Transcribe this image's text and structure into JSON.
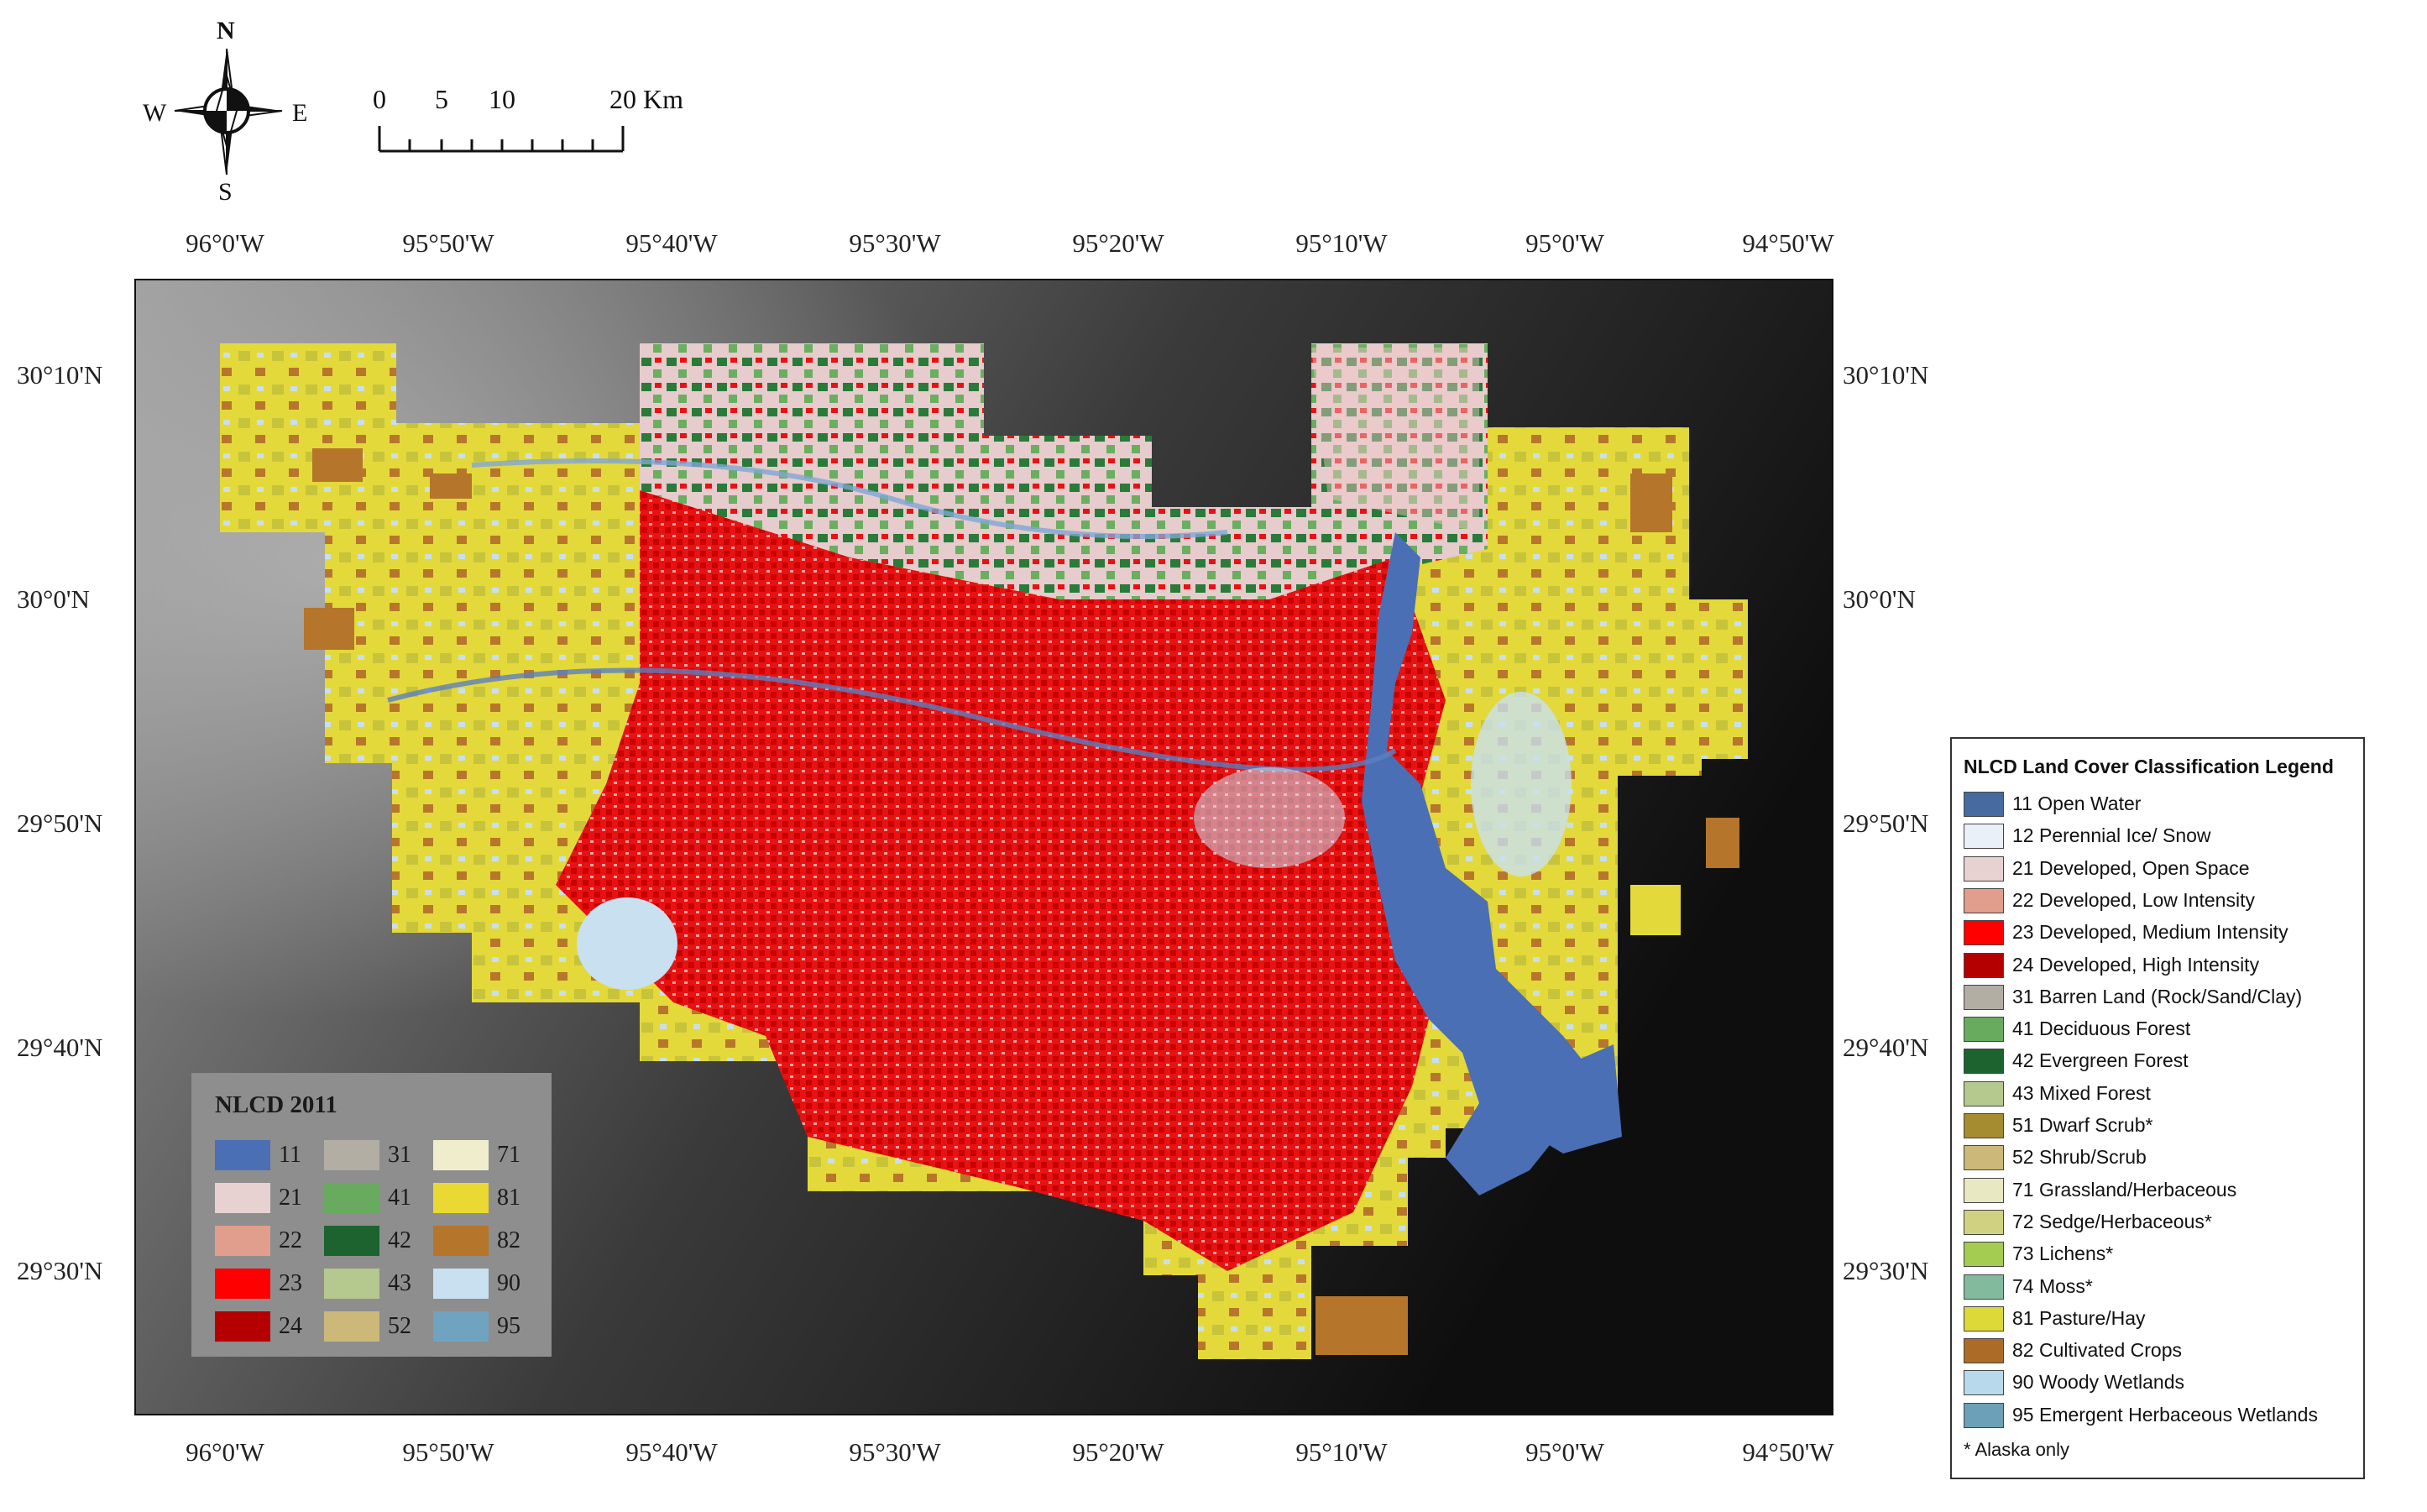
{
  "compass": {
    "north": "N",
    "south": "S",
    "west": "W",
    "east": "E"
  },
  "scale_bar": {
    "labels": [
      "0",
      "5",
      "10",
      "20 Km"
    ]
  },
  "graticule": {
    "longitudes": [
      "96°0'W",
      "95°50'W",
      "95°40'W",
      "95°30'W",
      "95°20'W",
      "95°10'W",
      "95°0'W",
      "94°50'W"
    ],
    "latitudes": [
      "30°10'N",
      "30°0'N",
      "29°50'N",
      "29°40'N",
      "29°30'N"
    ]
  },
  "inset_legend": {
    "title": "NLCD 2011",
    "classes": [
      {
        "code": "11",
        "color": "#4a6fb5"
      },
      {
        "code": "21",
        "color": "#e8d1d1"
      },
      {
        "code": "22",
        "color": "#e29e8c"
      },
      {
        "code": "23",
        "color": "#ff0000"
      },
      {
        "code": "24",
        "color": "#b50000"
      },
      {
        "code": "31",
        "color": "#b3aea3"
      },
      {
        "code": "41",
        "color": "#68ab5f"
      },
      {
        "code": "42",
        "color": "#1c6330"
      },
      {
        "code": "43",
        "color": "#b5c98e"
      },
      {
        "code": "52",
        "color": "#ccb879"
      },
      {
        "code": "71",
        "color": "#efedcc"
      },
      {
        "code": "81",
        "color": "#ead932"
      },
      {
        "code": "82",
        "color": "#b5752a"
      },
      {
        "code": "90",
        "color": "#c8e0f0"
      },
      {
        "code": "95",
        "color": "#70a3c0"
      }
    ]
  },
  "legend": {
    "title": "NLCD Land Cover Classification Legend",
    "items": [
      {
        "label": "11 Open Water",
        "color": "#476ba1"
      },
      {
        "label": "12 Perennial Ice/ Snow",
        "color": "#eaf0f8"
      },
      {
        "label": "21 Developed, Open Space",
        "color": "#e8d1d1"
      },
      {
        "label": "22 Developed, Low Intensity",
        "color": "#e29e8c"
      },
      {
        "label": "23 Developed, Medium Intensity",
        "color": "#ff0000"
      },
      {
        "label": "24 Developed, High Intensity",
        "color": "#b50000"
      },
      {
        "label": "31 Barren Land (Rock/Sand/Clay)",
        "color": "#b3aea3"
      },
      {
        "label": "41 Deciduous Forest",
        "color": "#68ab5f"
      },
      {
        "label": "42 Evergreen Forest",
        "color": "#1c6330"
      },
      {
        "label": "43 Mixed Forest",
        "color": "#b5c98e"
      },
      {
        "label": "51 Dwarf Scrub*",
        "color": "#a68c30"
      },
      {
        "label": "52 Shrub/Scrub",
        "color": "#ccb879"
      },
      {
        "label": "71 Grassland/Herbaceous",
        "color": "#e8e8c2"
      },
      {
        "label": "72 Sedge/Herbaceous*",
        "color": "#d1d182"
      },
      {
        "label": "73 Lichens*",
        "color": "#a3cc51"
      },
      {
        "label": "74 Moss*",
        "color": "#82ba9e"
      },
      {
        "label": "81 Pasture/Hay",
        "color": "#dcd939"
      },
      {
        "label": "82 Cultivated Crops",
        "color": "#ab6c28"
      },
      {
        "label": "90 Woody Wetlands",
        "color": "#b8d9eb"
      },
      {
        "label": "95 Emergent Herbaceous Wetlands",
        "color": "#6c9fb8"
      }
    ],
    "note": "* Alaska only"
  }
}
